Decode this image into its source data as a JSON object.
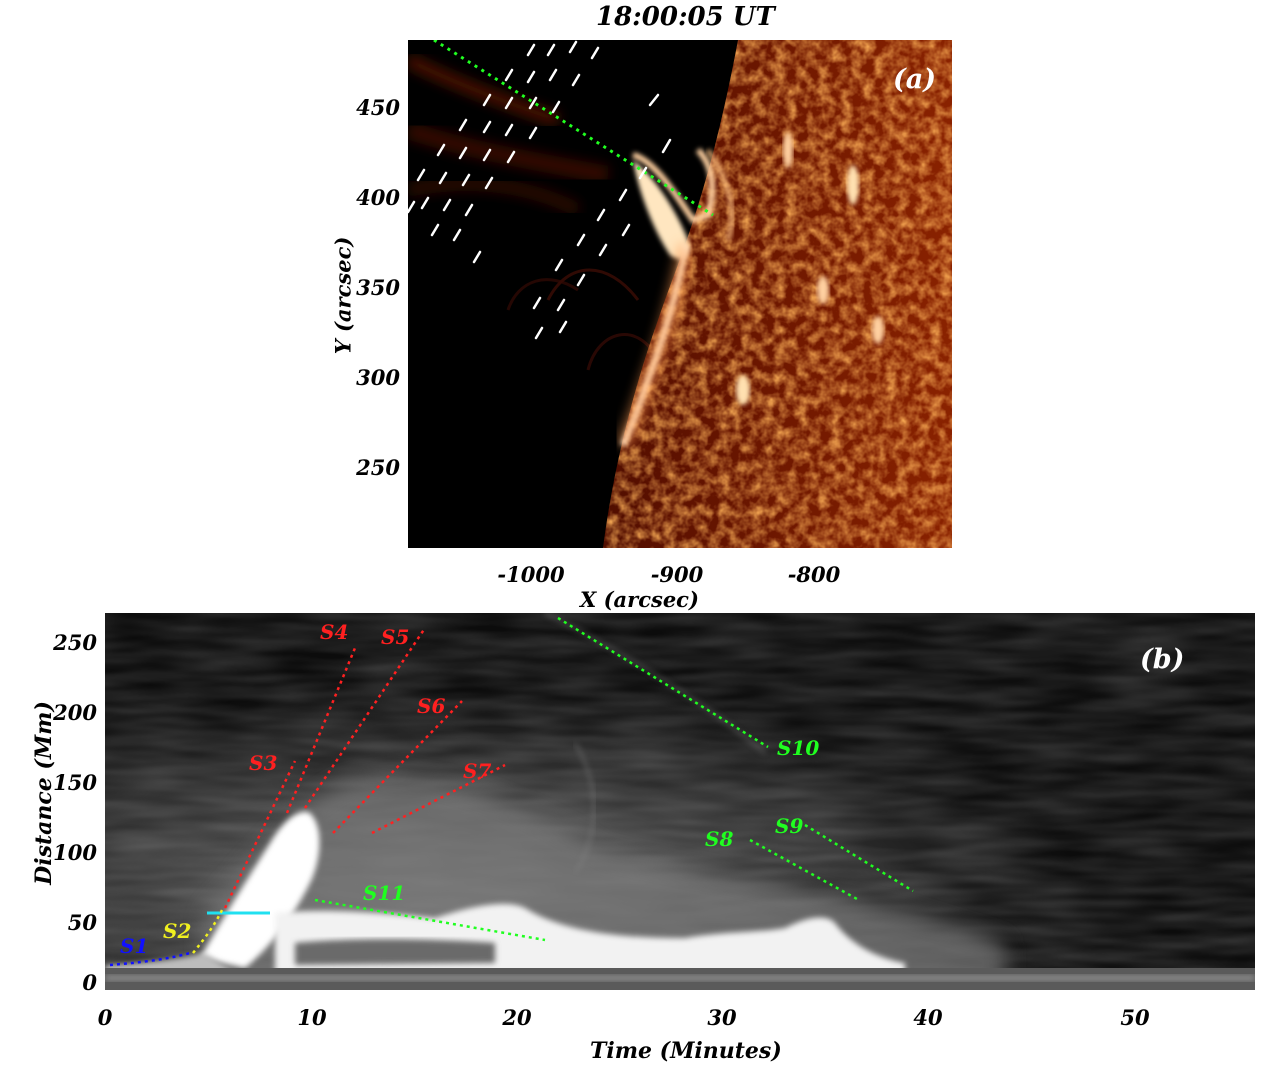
{
  "panel_a": {
    "title": "18:00:05 UT",
    "label": "(a)",
    "xlabel": "X (arcsec)",
    "ylabel": "Y (arcsec)",
    "xticks": [
      "-1000",
      "-900",
      "-800"
    ],
    "yticks": [
      "450",
      "400",
      "350",
      "300",
      "250"
    ]
  },
  "panel_b": {
    "label": "(b)",
    "xlabel": "Time (Minutes)",
    "ylabel": "Distance (Mm)",
    "xticks": [
      "0",
      "10",
      "20",
      "30",
      "40",
      "50"
    ],
    "yticks": [
      "250",
      "200",
      "150",
      "100",
      "50",
      "0"
    ],
    "tracks": [
      {
        "name": "S1",
        "color": "#1010ff"
      },
      {
        "name": "S2",
        "color": "#f0f020"
      },
      {
        "name": "S3",
        "color": "#ff2020"
      },
      {
        "name": "S4",
        "color": "#ff2020"
      },
      {
        "name": "S5",
        "color": "#ff2020"
      },
      {
        "name": "S6",
        "color": "#ff2020"
      },
      {
        "name": "S7",
        "color": "#ff2020"
      },
      {
        "name": "S8",
        "color": "#20ff20"
      },
      {
        "name": "S9",
        "color": "#20ff20"
      },
      {
        "name": "S10",
        "color": "#20ff20"
      },
      {
        "name": "S11",
        "color": "#20ff20"
      }
    ]
  }
}
